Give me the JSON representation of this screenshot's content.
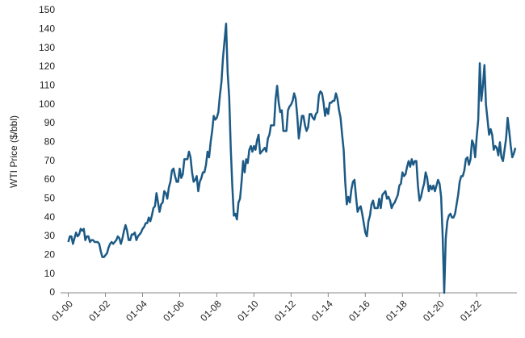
{
  "chart_data": {
    "type": "line",
    "y_label": "WTI Price ($/bbl)",
    "x": [
      "2000-01",
      "2000-02",
      "2000-03",
      "2000-04",
      "2000-05",
      "2000-06",
      "2000-07",
      "2000-08",
      "2000-09",
      "2000-10",
      "2000-11",
      "2000-12",
      "2001-01",
      "2001-02",
      "2001-03",
      "2001-04",
      "2001-05",
      "2001-06",
      "2001-07",
      "2001-08",
      "2001-09",
      "2001-10",
      "2001-11",
      "2001-12",
      "2002-01",
      "2002-02",
      "2002-03",
      "2002-04",
      "2002-05",
      "2002-06",
      "2002-07",
      "2002-08",
      "2002-09",
      "2002-10",
      "2002-11",
      "2002-12",
      "2003-01",
      "2003-02",
      "2003-03",
      "2003-04",
      "2003-05",
      "2003-06",
      "2003-07",
      "2003-08",
      "2003-09",
      "2003-10",
      "2003-11",
      "2003-12",
      "2004-01",
      "2004-02",
      "2004-03",
      "2004-04",
      "2004-05",
      "2004-06",
      "2004-07",
      "2004-08",
      "2004-09",
      "2004-10",
      "2004-11",
      "2004-12",
      "2005-01",
      "2005-02",
      "2005-03",
      "2005-04",
      "2005-05",
      "2005-06",
      "2005-07",
      "2005-08",
      "2005-09",
      "2005-10",
      "2005-11",
      "2005-12",
      "2006-01",
      "2006-02",
      "2006-03",
      "2006-04",
      "2006-05",
      "2006-06",
      "2006-07",
      "2006-08",
      "2006-09",
      "2006-10",
      "2006-11",
      "2006-12",
      "2007-01",
      "2007-02",
      "2007-03",
      "2007-04",
      "2007-05",
      "2007-06",
      "2007-07",
      "2007-08",
      "2007-09",
      "2007-10",
      "2007-11",
      "2007-12",
      "2008-01",
      "2008-02",
      "2008-03",
      "2008-04",
      "2008-05",
      "2008-06",
      "2008-07",
      "2008-08",
      "2008-09",
      "2008-10",
      "2008-11",
      "2008-12",
      "2009-01",
      "2009-02",
      "2009-03",
      "2009-04",
      "2009-05",
      "2009-06",
      "2009-07",
      "2009-08",
      "2009-09",
      "2009-10",
      "2009-11",
      "2009-12",
      "2010-01",
      "2010-02",
      "2010-03",
      "2010-04",
      "2010-05",
      "2010-06",
      "2010-07",
      "2010-08",
      "2010-09",
      "2010-10",
      "2010-11",
      "2010-12",
      "2011-01",
      "2011-02",
      "2011-03",
      "2011-04",
      "2011-05",
      "2011-06",
      "2011-07",
      "2011-08",
      "2011-09",
      "2011-10",
      "2011-11",
      "2011-12",
      "2012-01",
      "2012-02",
      "2012-03",
      "2012-04",
      "2012-05",
      "2012-06",
      "2012-07",
      "2012-08",
      "2012-09",
      "2012-10",
      "2012-11",
      "2012-12",
      "2013-01",
      "2013-02",
      "2013-03",
      "2013-04",
      "2013-05",
      "2013-06",
      "2013-07",
      "2013-08",
      "2013-09",
      "2013-10",
      "2013-11",
      "2013-12",
      "2014-01",
      "2014-02",
      "2014-03",
      "2014-04",
      "2014-05",
      "2014-06",
      "2014-07",
      "2014-08",
      "2014-09",
      "2014-10",
      "2014-11",
      "2014-12",
      "2015-01",
      "2015-02",
      "2015-03",
      "2015-04",
      "2015-05",
      "2015-06",
      "2015-07",
      "2015-08",
      "2015-09",
      "2015-10",
      "2015-11",
      "2015-12",
      "2016-01",
      "2016-02",
      "2016-03",
      "2016-04",
      "2016-05",
      "2016-06",
      "2016-07",
      "2016-08",
      "2016-09",
      "2016-10",
      "2016-11",
      "2016-12",
      "2017-01",
      "2017-02",
      "2017-03",
      "2017-04",
      "2017-05",
      "2017-06",
      "2017-07",
      "2017-08",
      "2017-09",
      "2017-10",
      "2017-11",
      "2017-12",
      "2018-01",
      "2018-02",
      "2018-03",
      "2018-04",
      "2018-05",
      "2018-06",
      "2018-07",
      "2018-08",
      "2018-09",
      "2018-10",
      "2018-11",
      "2018-12",
      "2019-01",
      "2019-02",
      "2019-03",
      "2019-04",
      "2019-05",
      "2019-06",
      "2019-07",
      "2019-08",
      "2019-09",
      "2019-10",
      "2019-11",
      "2019-12",
      "2020-01",
      "2020-02",
      "2020-03",
      "2020-04",
      "2020-05",
      "2020-06",
      "2020-07",
      "2020-08",
      "2020-09",
      "2020-10",
      "2020-11",
      "2020-12",
      "2021-01",
      "2021-02",
      "2021-03",
      "2021-04",
      "2021-05",
      "2021-06",
      "2021-07",
      "2021-08",
      "2021-09",
      "2021-10",
      "2021-11",
      "2021-12",
      "2022-01",
      "2022-02",
      "2022-03",
      "2022-04",
      "2022-05",
      "2022-06",
      "2022-07",
      "2022-08",
      "2022-09",
      "2022-10",
      "2022-11",
      "2022-12",
      "2023-01",
      "2023-02",
      "2023-03",
      "2023-04",
      "2023-05",
      "2023-06",
      "2023-07",
      "2023-08",
      "2023-09",
      "2023-10",
      "2023-11",
      "2023-12",
      "2024-01",
      "2024-02"
    ],
    "series": [
      {
        "name": "WTI",
        "color": "#1c5a85",
        "values": [
          27,
          30,
          30,
          26,
          29,
          32,
          30,
          31,
          34,
          33,
          34,
          28,
          30,
          30,
          27,
          28,
          28,
          27,
          27,
          27,
          26,
          22,
          19,
          19,
          20,
          21,
          24,
          26,
          27,
          26,
          27,
          28,
          30,
          29,
          26,
          29,
          33,
          36,
          33,
          28,
          28,
          31,
          31,
          32,
          28,
          30,
          31,
          32,
          34,
          35,
          37,
          37,
          40,
          38,
          41,
          45,
          46,
          53,
          48,
          43,
          47,
          48,
          54,
          53,
          50,
          56,
          59,
          65,
          66,
          62,
          59,
          59,
          66,
          61,
          63,
          71,
          71,
          71,
          75,
          72,
          64,
          59,
          60,
          62,
          54,
          59,
          61,
          64,
          64,
          68,
          75,
          72,
          80,
          86,
          94,
          92,
          93,
          96,
          105,
          112,
          125,
          134,
          143,
          117,
          104,
          77,
          57,
          41,
          42,
          39,
          48,
          50,
          59,
          70,
          64,
          71,
          69,
          76,
          78,
          75,
          78,
          76,
          81,
          84,
          74,
          75,
          76,
          77,
          75,
          82,
          84,
          89,
          89,
          89,
          103,
          110,
          101,
          96,
          97,
          86,
          86,
          86,
          97,
          99,
          100,
          102,
          106,
          103,
          94,
          82,
          88,
          94,
          94,
          89,
          86,
          88,
          95,
          95,
          93,
          92,
          95,
          96,
          105,
          107,
          106,
          101,
          94,
          98,
          95,
          101,
          101,
          102,
          102,
          106,
          103,
          97,
          93,
          84,
          76,
          59,
          47,
          51,
          48,
          55,
          59,
          60,
          51,
          43,
          45,
          46,
          42,
          37,
          32,
          30,
          38,
          41,
          47,
          49,
          45,
          45,
          45,
          50,
          45,
          52,
          53,
          54,
          50,
          51,
          49,
          45,
          47,
          48,
          50,
          52,
          57,
          58,
          64,
          62,
          63,
          67,
          70,
          67,
          71,
          68,
          70,
          70,
          57,
          49,
          51,
          55,
          58,
          64,
          61,
          54,
          57,
          55,
          57,
          54,
          57,
          60,
          58,
          51,
          30,
          0,
          29,
          38,
          41,
          42,
          40,
          40,
          42,
          47,
          52,
          59,
          62,
          62,
          65,
          71,
          72,
          68,
          71,
          81,
          79,
          72,
          83,
          92,
          122,
          102,
          110,
          121,
          100,
          92,
          84,
          87,
          84,
          76,
          78,
          77,
          73,
          80,
          72,
          70,
          76,
          82,
          93,
          86,
          78,
          72,
          74,
          77
        ]
      }
    ],
    "xlim": [
      "1999-08",
      "2024-03"
    ],
    "xticks": [
      {
        "value": "2000-01",
        "label": "01-00"
      },
      {
        "value": "2002-01",
        "label": "01-02"
      },
      {
        "value": "2004-01",
        "label": "01-04"
      },
      {
        "value": "2006-01",
        "label": "01-06"
      },
      {
        "value": "2008-01",
        "label": "01-08"
      },
      {
        "value": "2010-01",
        "label": "01-10"
      },
      {
        "value": "2012-01",
        "label": "01-12"
      },
      {
        "value": "2014-01",
        "label": "01-14"
      },
      {
        "value": "2016-01",
        "label": "01-16"
      },
      {
        "value": "2018-01",
        "label": "01-18"
      },
      {
        "value": "2020-01",
        "label": "01-20"
      },
      {
        "value": "2022-01",
        "label": "01-22"
      }
    ],
    "ylim": [
      0,
      150
    ],
    "yticks": [
      0,
      10,
      20,
      30,
      40,
      50,
      60,
      70,
      80,
      90,
      100,
      110,
      120,
      130,
      140,
      150
    ],
    "grid": false
  }
}
